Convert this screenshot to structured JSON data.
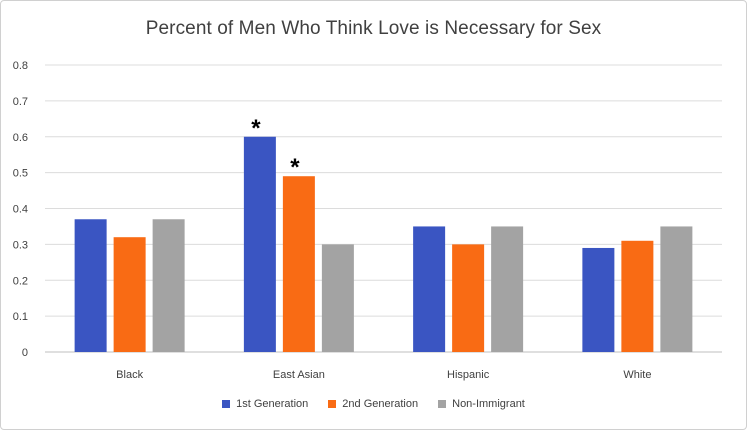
{
  "chart_data": {
    "type": "bar",
    "title": "Percent of Men Who Think Love is Necessary for Sex",
    "categories": [
      "Black",
      "East Asian",
      "Hispanic",
      "White"
    ],
    "series": [
      {
        "name": "1st Generation",
        "color": "#3a55c2",
        "values": [
          0.37,
          0.6,
          0.35,
          0.29
        ]
      },
      {
        "name": "2nd Generation",
        "color": "#f96b14",
        "values": [
          0.32,
          0.49,
          0.3,
          0.31
        ]
      },
      {
        "name": "Non-Immigrant",
        "color": "#a3a3a3",
        "values": [
          0.37,
          0.3,
          0.35,
          0.35
        ]
      }
    ],
    "ylim": [
      0,
      0.8
    ],
    "yticks": [
      "0",
      "0.1",
      "0.2",
      "0.3",
      "0.4",
      "0.5",
      "0.6",
      "0.7",
      "0.8"
    ],
    "grid": true,
    "legend_position": "bottom",
    "annotations": [
      {
        "text": "*",
        "category": "East Asian",
        "series": "1st Generation"
      },
      {
        "text": "*",
        "category": "East Asian",
        "series": "2nd Generation"
      }
    ]
  }
}
